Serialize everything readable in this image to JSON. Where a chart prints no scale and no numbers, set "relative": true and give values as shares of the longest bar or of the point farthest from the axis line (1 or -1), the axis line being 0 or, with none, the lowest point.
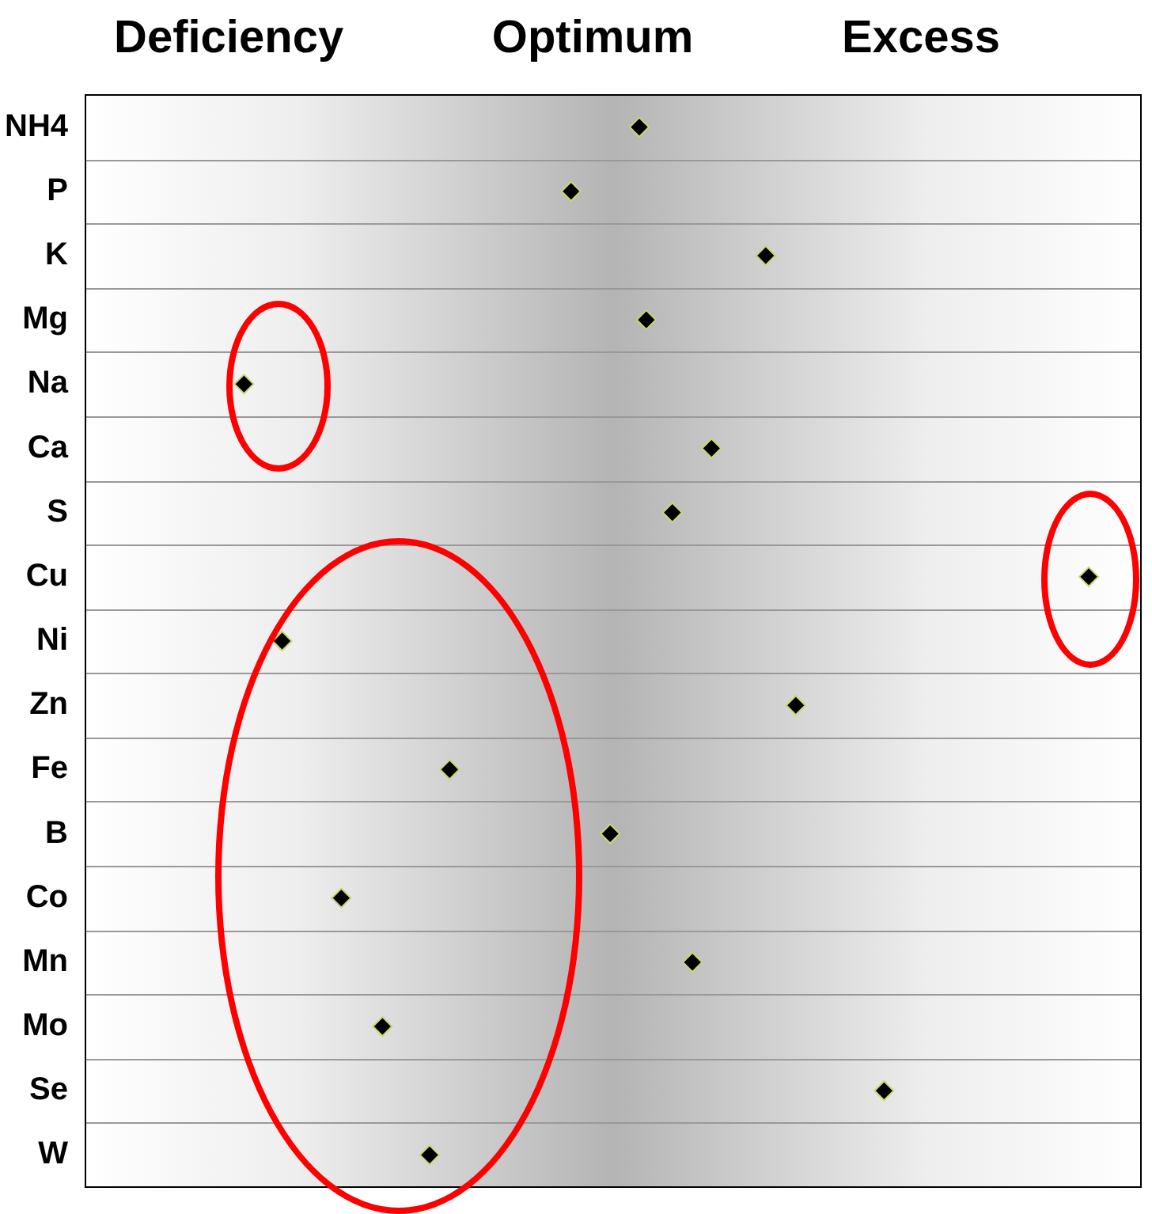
{
  "chart_data": {
    "type": "scatter",
    "orientation": "horizontal",
    "relative": true,
    "categories": [
      "NH4",
      "P",
      "K",
      "Mg",
      "Na",
      "Ca",
      "S",
      "Cu",
      "Ni",
      "Zn",
      "Fe",
      "B",
      "Co",
      "Mn",
      "Mo",
      "Se",
      "W"
    ],
    "values": [
      0.552,
      0.484,
      0.678,
      0.559,
      0.158,
      0.624,
      0.585,
      1,
      0.196,
      0.708,
      0.363,
      0.523,
      0.255,
      0.605,
      0.296,
      0.796,
      0.343
    ],
    "color": "#000000",
    "marker": "diamond",
    "grid": "y",
    "legend": false,
    "annotations": [
      "Deficiency",
      "Optimum",
      "Excess"
    ]
  }
}
